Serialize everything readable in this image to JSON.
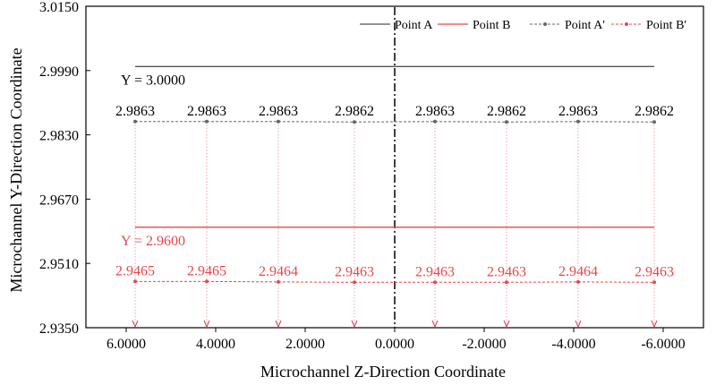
{
  "chart_data": {
    "type": "line",
    "xlabel": "Microchannel Z-Direction Coordinate",
    "ylabel": "Microchannel Y-Direction Coordinate",
    "xlim": [
      6.9,
      -6.9
    ],
    "ylim": [
      2.935,
      3.015
    ],
    "x_ticks": [
      6.0,
      4.0,
      2.0,
      0.0,
      -2.0,
      -4.0,
      -6.0
    ],
    "x_tick_labels": [
      "6.0000",
      "4.0000",
      "2.0000",
      "0.0000",
      "-2.0000",
      "-4.0000",
      "-6.0000"
    ],
    "y_ticks": [
      2.935,
      2.951,
      2.967,
      2.983,
      2.999,
      3.015
    ],
    "y_tick_labels": [
      "2.9350",
      "2.9510",
      "2.9670",
      "2.9830",
      "2.9990",
      "3.0150"
    ],
    "center_line_x": 0.0,
    "grid": false,
    "legend_position": "top-right",
    "series": [
      {
        "name": "Point A",
        "style": "solid",
        "color": "#555555",
        "x": [
          5.8,
          -5.8
        ],
        "y": [
          3.0,
          3.0
        ]
      },
      {
        "name": "Point B",
        "style": "solid",
        "color": "#e8474a",
        "x": [
          5.8,
          -5.8
        ],
        "y": [
          2.96,
          2.96
        ]
      },
      {
        "name": "Point A'",
        "style": "dashed-markers",
        "color": "#666666",
        "x": [
          5.8,
          4.2,
          2.6,
          0.9,
          -0.9,
          -2.5,
          -4.1,
          -5.8
        ],
        "y": [
          2.9863,
          2.9863,
          2.9863,
          2.9862,
          2.9863,
          2.9862,
          2.9863,
          2.9862
        ]
      },
      {
        "name": "Point B'",
        "style": "dashed-markers",
        "color": "#e8474a",
        "x": [
          5.8,
          4.2,
          2.6,
          0.9,
          -0.9,
          -2.5,
          -4.1,
          -5.8
        ],
        "y": [
          2.9465,
          2.9465,
          2.9464,
          2.9463,
          2.9463,
          2.9463,
          2.9464,
          2.9463
        ]
      }
    ],
    "data_labels": {
      "a_prime": [
        "2.9863",
        "2.9863",
        "2.9863",
        "2.9862",
        "2.9863",
        "2.9862",
        "2.9863",
        "2.9862"
      ],
      "b_prime": [
        "2.9465",
        "2.9465",
        "2.9464",
        "2.9463",
        "2.9463",
        "2.9463",
        "2.9464",
        "2.9463"
      ]
    },
    "annotations": [
      {
        "text": "Y = 3.0000",
        "color": "#000000"
      },
      {
        "text": "Y = 2.9600",
        "color": "#e8474a"
      }
    ]
  }
}
